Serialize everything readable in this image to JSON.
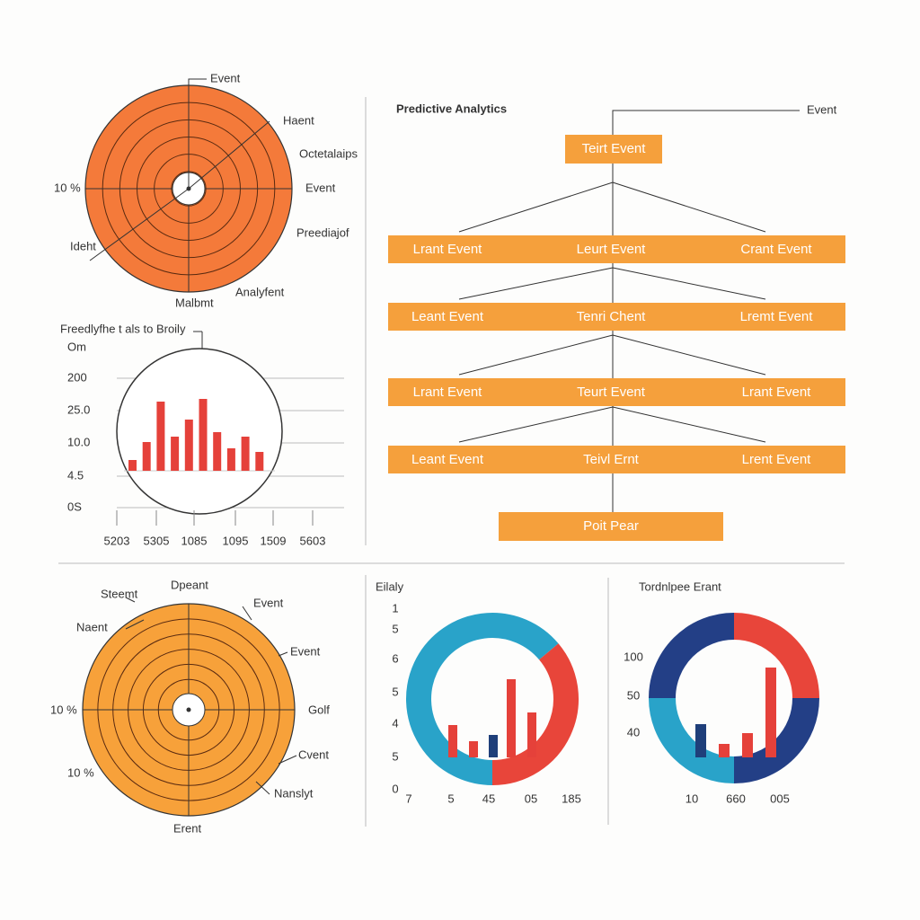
{
  "panel1": {
    "labels": [
      "Event",
      "Haent",
      "Octetalaips",
      "10 %",
      "Event",
      "Preediajof",
      "Ideht",
      "Malbmt",
      "Analyfent"
    ]
  },
  "panel2": {
    "title": "Freedlyfhe t als to Broily",
    "ylabels": [
      "Om",
      "200",
      "25.0",
      "10.0",
      "4.5",
      "0S"
    ],
    "xlabels": [
      "5203",
      "5305",
      "1085",
      "1095",
      "1509",
      "5603"
    ],
    "bars": [
      12,
      32,
      77,
      38,
      57,
      80,
      43,
      25,
      38,
      21
    ]
  },
  "panel3": {
    "title": "Predictive Analytics",
    "top_label": "Event",
    "root": "Teirt Event",
    "rows": [
      [
        "Lrant Event",
        "Leurt Event",
        "Crant Event"
      ],
      [
        "Leant Event",
        "Tenri Chent",
        "Lremt Event"
      ],
      [
        "Lrant Event",
        "Teurt Event",
        "Lrant Event"
      ],
      [
        "Leant Event",
        "Teivl Ernt",
        "Lrent Event"
      ]
    ],
    "footer": "Poit Pear"
  },
  "panel4": {
    "labels": [
      "Steemt",
      "Dpeant",
      "Event",
      "Naent",
      "Event",
      "10 %",
      "Golf",
      "Cvent",
      "10 %",
      "Nanslyt",
      "Erent"
    ]
  },
  "panel5": {
    "title": "Eilaly",
    "ylabels": [
      "1",
      "5",
      "6",
      "5",
      "4",
      "5",
      "0"
    ],
    "xlabels": [
      "7",
      "5",
      "45",
      "05",
      "185"
    ],
    "bars": [
      36,
      18,
      25,
      87,
      50
    ]
  },
  "panel6": {
    "title": "Tordnlpee Erant",
    "ylabels": [
      "100",
      "50",
      "40"
    ],
    "xlabels": [
      "10",
      "660",
      "005"
    ],
    "bars": [
      37,
      15,
      27,
      100
    ]
  }
}
